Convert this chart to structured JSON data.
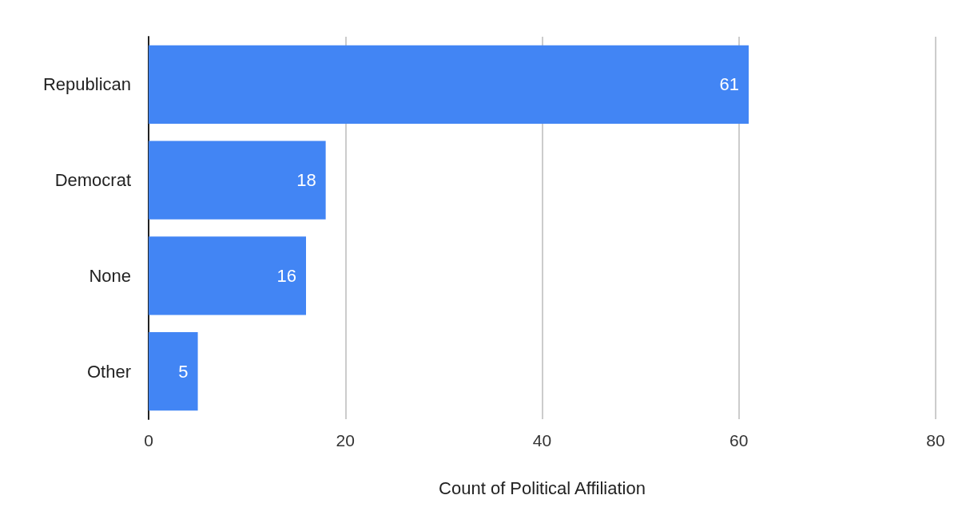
{
  "chart_data": {
    "type": "bar",
    "orientation": "horizontal",
    "categories": [
      "Republican",
      "Democrat",
      "None",
      "Other"
    ],
    "values": [
      61,
      18,
      16,
      5
    ],
    "color": "#4285f4",
    "xlabel": "Count of Political Affiliation",
    "xlim": [
      0,
      80
    ],
    "xticks": [
      0,
      20,
      40,
      60,
      80
    ],
    "grid": "x",
    "data_labels": true
  }
}
